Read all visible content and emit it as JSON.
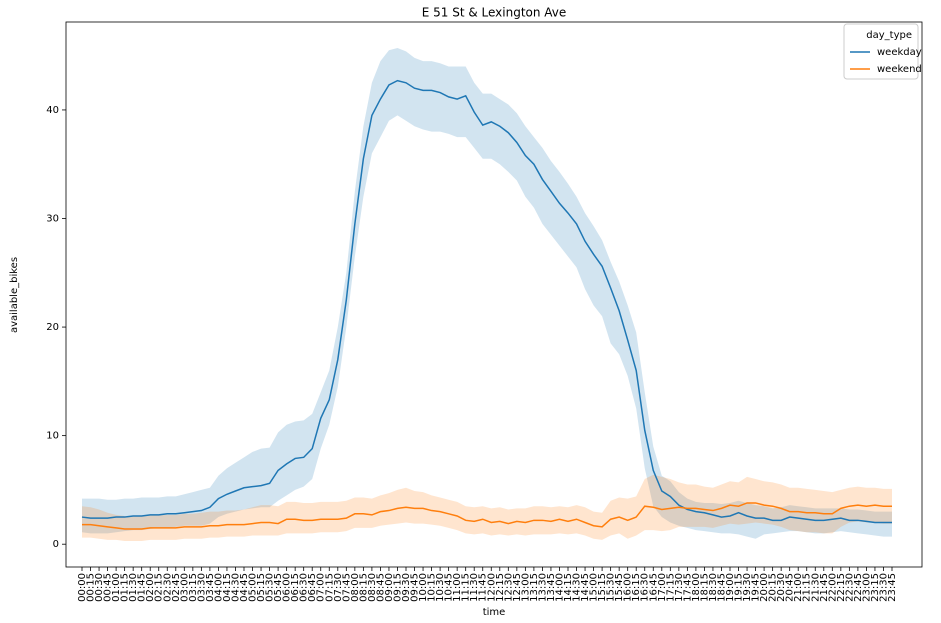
{
  "chart_data": {
    "type": "line",
    "title": "E 51 St & Lexington Ave",
    "x_label": "time",
    "y_label": "available_bikes",
    "legend_title": "day_type",
    "legend": "upper right",
    "categories": [
      "00:00",
      "00:15",
      "00:30",
      "00:45",
      "01:00",
      "01:15",
      "01:30",
      "01:45",
      "02:00",
      "02:15",
      "02:30",
      "02:45",
      "03:00",
      "03:15",
      "03:30",
      "03:45",
      "04:00",
      "04:15",
      "04:30",
      "04:45",
      "05:00",
      "05:15",
      "05:30",
      "05:45",
      "06:00",
      "06:15",
      "06:30",
      "06:45",
      "07:00",
      "07:15",
      "07:30",
      "07:45",
      "08:00",
      "08:15",
      "08:30",
      "08:45",
      "09:00",
      "09:15",
      "09:30",
      "09:45",
      "10:00",
      "10:15",
      "10:30",
      "10:45",
      "11:00",
      "11:15",
      "11:30",
      "11:45",
      "12:00",
      "12:15",
      "12:30",
      "12:45",
      "13:00",
      "13:15",
      "13:30",
      "13:45",
      "14:00",
      "14:15",
      "14:30",
      "14:45",
      "15:00",
      "15:15",
      "15:30",
      "15:45",
      "16:00",
      "16:15",
      "16:30",
      "16:45",
      "17:00",
      "17:15",
      "17:30",
      "17:45",
      "18:00",
      "18:15",
      "18:30",
      "18:45",
      "19:00",
      "19:15",
      "19:30",
      "19:45",
      "20:00",
      "20:15",
      "20:30",
      "20:45",
      "21:00",
      "21:15",
      "21:30",
      "21:45",
      "22:00",
      "22:15",
      "22:30",
      "22:45",
      "23:00",
      "23:15",
      "23:30",
      "23:45"
    ],
    "ylim": [
      -2.1,
      48.1
    ],
    "yticks": [
      0,
      10,
      20,
      30,
      40
    ],
    "series": [
      {
        "name": "weekday",
        "color": "#1f77b4",
        "values": [
          2.5,
          2.4,
          2.4,
          2.4,
          2.5,
          2.5,
          2.6,
          2.6,
          2.7,
          2.7,
          2.8,
          2.8,
          2.9,
          3.0,
          3.1,
          3.4,
          4.2,
          4.6,
          4.9,
          5.2,
          5.3,
          5.4,
          5.6,
          6.8,
          7.4,
          7.9,
          8.0,
          8.8,
          11.6,
          13.3,
          17,
          22.5,
          29.5,
          35.5,
          39.5,
          41,
          42.3,
          42.7,
          42.5,
          42.0,
          41.8,
          41.8,
          41.6,
          41.2,
          41.0,
          41.3,
          39.8,
          38.6,
          38.9,
          38.5,
          37.9,
          37.0,
          35.8,
          35.0,
          33.6,
          32.5,
          31.4,
          30.5,
          29.5,
          27.9,
          26.7,
          25.6,
          23.6,
          21.5,
          18.8,
          16.0,
          10.5,
          6.8,
          4.9,
          4.4,
          3.6,
          3.2,
          3.0,
          2.9,
          2.7,
          2.5,
          2.6,
          2.9,
          2.6,
          2.4,
          2.4,
          2.2,
          2.2,
          2.5,
          2.4,
          2.3,
          2.2,
          2.2,
          2.3,
          2.4,
          2.2,
          2.2,
          2.1,
          2.0,
          2.0,
          2.0
        ],
        "upper": [
          4.2,
          4.2,
          4.2,
          4.1,
          4.1,
          4.2,
          4.2,
          4.3,
          4.3,
          4.3,
          4.4,
          4.4,
          4.6,
          4.8,
          5.0,
          5.2,
          6.3,
          7.0,
          7.5,
          8.0,
          8.5,
          8.8,
          8.9,
          10.3,
          11.0,
          11.3,
          11.4,
          12.0,
          14.0,
          16.0,
          20.0,
          25.0,
          32.5,
          38.5,
          42.5,
          44.5,
          45.5,
          45.7,
          45.4,
          44.8,
          44.5,
          44.5,
          44.3,
          44.0,
          44.0,
          44.0,
          42.5,
          41.5,
          41.5,
          41.0,
          40.5,
          39.7,
          38.5,
          37.5,
          36.5,
          35.3,
          34.3,
          33.2,
          32.0,
          30.5,
          29.3,
          28.0,
          26.0,
          24.2,
          22.0,
          19.5,
          14.0,
          9.0,
          6.3,
          5.8,
          4.8,
          4.2,
          3.9,
          3.8,
          3.8,
          3.7,
          3.8,
          4.0,
          3.8,
          3.6,
          3.5,
          3.3,
          3.4,
          3.6,
          3.5,
          3.4,
          3.3,
          3.3,
          3.3,
          3.3,
          3.2,
          3.2,
          3.1,
          3.0,
          3.0,
          3.0
        ],
        "lower": [
          1.1,
          1.0,
          1.0,
          1.0,
          1.1,
          1.2,
          1.3,
          1.3,
          1.4,
          1.5,
          1.5,
          1.6,
          1.7,
          1.7,
          1.7,
          1.9,
          2.5,
          2.8,
          3.0,
          3.2,
          3.3,
          3.4,
          3.4,
          4.0,
          4.5,
          5.0,
          5.3,
          6.0,
          8.8,
          11.0,
          14.5,
          20.0,
          26.5,
          32.0,
          36.0,
          37.5,
          39.0,
          39.5,
          39.0,
          38.5,
          38.2,
          38.0,
          38.0,
          37.8,
          37.5,
          37.5,
          36.5,
          35.5,
          35.5,
          35.0,
          34.3,
          33.5,
          32.0,
          31.0,
          29.5,
          28.5,
          27.5,
          26.5,
          25.5,
          23.5,
          22.0,
          21.0,
          18.5,
          17.5,
          15.5,
          12.5,
          7.0,
          3.5,
          2.5,
          2.0,
          1.7,
          1.5,
          1.3,
          1.2,
          1.1,
          1.0,
          1.0,
          0.9,
          0.7,
          0.5,
          0.9,
          1.0,
          1.1,
          1.2,
          1.2,
          1.1,
          1.0,
          1.0,
          1.1,
          1.2,
          1.1,
          1.0,
          0.9,
          0.8,
          0.7,
          0.7
        ]
      },
      {
        "name": "weekend",
        "color": "#ff7f0e",
        "values": [
          1.8,
          1.8,
          1.7,
          1.6,
          1.5,
          1.4,
          1.4,
          1.4,
          1.5,
          1.5,
          1.5,
          1.5,
          1.6,
          1.6,
          1.6,
          1.7,
          1.7,
          1.8,
          1.8,
          1.8,
          1.9,
          2.0,
          2.0,
          1.9,
          2.3,
          2.3,
          2.2,
          2.2,
          2.3,
          2.3,
          2.3,
          2.4,
          2.8,
          2.8,
          2.7,
          3.0,
          3.1,
          3.3,
          3.4,
          3.3,
          3.3,
          3.1,
          3.0,
          2.8,
          2.6,
          2.2,
          2.1,
          2.3,
          2.0,
          2.1,
          1.9,
          2.1,
          2.0,
          2.2,
          2.2,
          2.1,
          2.3,
          2.1,
          2.3,
          2.0,
          1.7,
          1.6,
          2.3,
          2.5,
          2.2,
          2.5,
          3.5,
          3.4,
          3.2,
          3.3,
          3.4,
          3.3,
          3.3,
          3.2,
          3.1,
          3.3,
          3.6,
          3.5,
          3.8,
          3.8,
          3.6,
          3.5,
          3.3,
          3.0,
          3.0,
          2.9,
          2.9,
          2.8,
          2.8,
          3.3,
          3.5,
          3.6,
          3.5,
          3.6,
          3.5,
          3.5
        ],
        "upper": [
          3.5,
          3.4,
          3.2,
          2.9,
          2.7,
          2.6,
          2.6,
          2.6,
          2.7,
          2.7,
          2.7,
          2.7,
          2.8,
          2.8,
          2.9,
          3.0,
          3.0,
          3.1,
          3.1,
          3.2,
          3.4,
          3.6,
          3.6,
          3.5,
          3.9,
          3.9,
          3.8,
          3.8,
          3.9,
          3.9,
          3.9,
          4.0,
          4.3,
          4.3,
          4.2,
          4.5,
          4.7,
          5.0,
          5.2,
          4.9,
          4.8,
          4.5,
          4.3,
          4.1,
          3.9,
          3.5,
          3.4,
          3.5,
          3.3,
          3.4,
          3.2,
          3.3,
          3.3,
          3.5,
          3.5,
          3.4,
          3.5,
          3.4,
          3.6,
          3.4,
          3.0,
          2.9,
          4.0,
          4.3,
          4.2,
          4.4,
          6.0,
          6.4,
          6.2,
          6.0,
          5.7,
          5.5,
          5.5,
          5.3,
          5.2,
          5.5,
          5.8,
          5.7,
          6.2,
          6.0,
          5.8,
          5.7,
          5.5,
          5.2,
          5.2,
          5.1,
          5.0,
          4.9,
          4.8,
          5.0,
          5.2,
          5.3,
          5.2,
          5.2,
          5.1,
          5.1
        ],
        "lower": [
          0.6,
          0.6,
          0.5,
          0.4,
          0.4,
          0.3,
          0.3,
          0.3,
          0.4,
          0.4,
          0.4,
          0.4,
          0.5,
          0.5,
          0.5,
          0.6,
          0.6,
          0.7,
          0.7,
          0.7,
          0.8,
          0.8,
          0.8,
          0.8,
          1.0,
          1.0,
          1.0,
          1.0,
          1.1,
          1.1,
          1.1,
          1.2,
          1.5,
          1.5,
          1.5,
          1.7,
          1.8,
          1.9,
          2.0,
          1.9,
          1.9,
          1.8,
          1.7,
          1.5,
          1.3,
          1.0,
          0.9,
          1.0,
          0.8,
          0.9,
          0.8,
          0.9,
          0.8,
          0.9,
          0.9,
          0.9,
          1.0,
          0.9,
          1.0,
          0.8,
          0.5,
          0.4,
          0.8,
          1.0,
          0.5,
          0.8,
          1.3,
          1.3,
          1.2,
          1.3,
          1.6,
          1.6,
          1.6,
          1.6,
          1.5,
          1.7,
          1.9,
          1.8,
          1.9,
          2.0,
          1.9,
          1.8,
          1.6,
          1.3,
          1.2,
          1.1,
          1.1,
          1.0,
          1.0,
          1.6,
          2.0,
          2.1,
          2.0,
          2.0,
          1.9,
          1.9
        ]
      }
    ]
  }
}
